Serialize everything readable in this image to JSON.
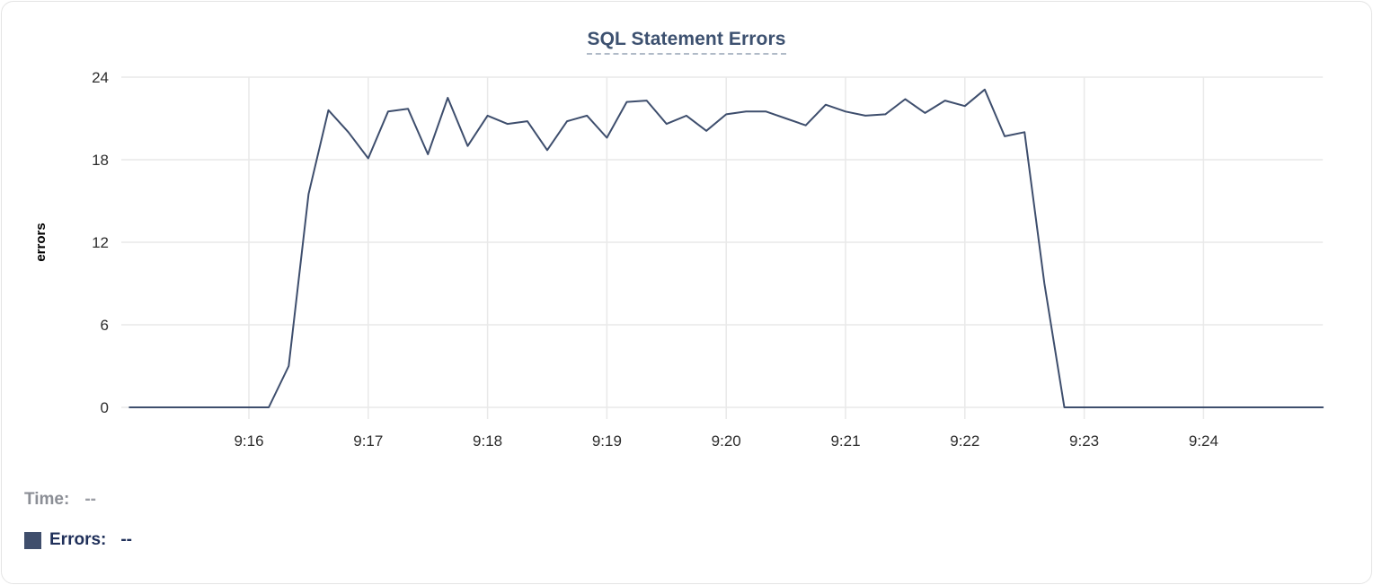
{
  "title": "SQL Statement Errors",
  "legend": {
    "time_label": "Time:",
    "time_value": "--",
    "errors_label": "Errors:",
    "errors_value": "--",
    "swatch_color": "#3f4e6c"
  },
  "colors": {
    "line": "#3e4e6d",
    "grid": "#e9e9e9",
    "tick_label": "#2d2d2d",
    "axis_title": "#000000",
    "title": "#3d5170",
    "title_underline": "#b0bac7",
    "card_border": "#e4e4e4"
  },
  "chart_data": {
    "type": "line",
    "title": "SQL Statement Errors",
    "xlabel": "",
    "ylabel": "errors",
    "ylim": [
      0,
      24
    ],
    "y_ticks": [
      0,
      6,
      12,
      18,
      24
    ],
    "x_tick_labels": [
      "9:16",
      "9:17",
      "9:18",
      "9:19",
      "9:20",
      "9:21",
      "9:22",
      "9:23",
      "9:24"
    ],
    "x_domain": [
      "9:14:56",
      "9:25:01"
    ],
    "grid": true,
    "legend_position": "bottom-left",
    "series": [
      {
        "name": "Errors",
        "color": "#3e4e6d",
        "start_time": "9:15:00",
        "sample_interval_seconds": 10,
        "values": [
          0,
          0,
          0,
          0,
          0,
          0,
          0,
          0,
          3,
          15.5,
          21.6,
          20,
          18.1,
          21.5,
          21.7,
          18.4,
          22.5,
          19,
          21.2,
          20.6,
          20.8,
          18.7,
          20.8,
          21.2,
          19.6,
          22.2,
          22.3,
          20.6,
          21.2,
          20.1,
          21.3,
          21.5,
          21.5,
          21,
          20.5,
          22,
          21.5,
          21.2,
          21.3,
          22.4,
          21.4,
          22.3,
          21.9,
          23.1,
          19.7,
          20,
          9,
          0,
          0,
          0,
          0,
          0,
          0,
          0,
          0,
          0,
          0,
          0,
          0,
          0,
          0
        ]
      }
    ]
  }
}
